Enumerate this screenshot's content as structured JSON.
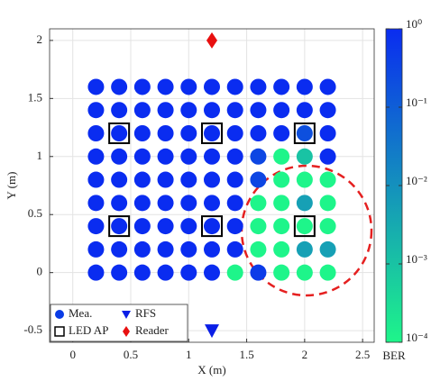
{
  "chart_data": {
    "type": "scatter",
    "xlabel": "X (m)",
    "ylabel": "Y (m)",
    "xlim": [
      -0.2,
      2.6
    ],
    "xticks": [
      0,
      0.5,
      1,
      1.5,
      2,
      2.5
    ],
    "ylim": [
      -0.6,
      2.1
    ],
    "yticks": [
      -0.5,
      0,
      0.5,
      1,
      1.5,
      2
    ],
    "grid": true,
    "legend": "lower left",
    "colorbar": {
      "label": "BER",
      "scale": "log",
      "clim": [
        0.0001,
        1
      ],
      "colormap": [
        "#1ef58a",
        "#0a2cf0"
      ],
      "ticks": [
        {
          "value": 1,
          "label": "10⁰"
        },
        {
          "value": 0.1,
          "label": "10⁻¹"
        },
        {
          "value": 0.01,
          "label": "10⁻²"
        },
        {
          "value": 0.001,
          "label": "10⁻³"
        },
        {
          "value": 0.0001,
          "label": "10⁻⁴"
        }
      ]
    },
    "series": [
      {
        "name": "Mea.",
        "marker": "circle",
        "color": "#0a3ce6",
        "x": [
          0.2,
          0.4,
          0.6,
          0.8,
          1,
          1.2,
          1.4,
          1.6,
          1.8,
          2,
          2.2,
          0.2,
          0.4,
          0.6,
          0.8,
          1,
          1.2,
          1.4,
          1.6,
          1.8,
          2,
          2.2,
          0.2,
          0.4,
          0.6,
          0.8,
          1,
          1.2,
          1.4,
          1.6,
          1.8,
          2,
          2.2,
          0.2,
          0.4,
          0.6,
          0.8,
          1,
          1.2,
          1.4,
          1.6,
          1.8,
          2,
          2.2,
          0.2,
          0.4,
          0.6,
          0.8,
          1,
          1.2,
          1.4,
          1.6,
          1.8,
          2,
          2.2,
          0.2,
          0.4,
          0.6,
          0.8,
          1,
          1.2,
          1.4,
          1.6,
          1.8,
          2,
          2.2,
          0.2,
          0.4,
          0.6,
          0.8,
          1,
          1.2,
          1.4,
          1.6,
          1.8,
          2,
          2.2,
          0.2,
          0.4,
          0.6,
          0.8,
          1,
          1.2,
          1.4,
          1.6,
          1.8,
          2,
          2.2,
          0.2,
          0.4,
          0.6,
          0.8,
          1,
          1.2,
          1.4,
          1.6,
          1.8,
          2,
          2.2
        ],
        "y": [
          0,
          0,
          0,
          0,
          0,
          0,
          0,
          0,
          0,
          0,
          0,
          0.2,
          0.2,
          0.2,
          0.2,
          0.2,
          0.2,
          0.2,
          0.2,
          0.2,
          0.2,
          0.2,
          0.4,
          0.4,
          0.4,
          0.4,
          0.4,
          0.4,
          0.4,
          0.4,
          0.4,
          0.4,
          0.4,
          0.6,
          0.6,
          0.6,
          0.6,
          0.6,
          0.6,
          0.6,
          0.6,
          0.6,
          0.6,
          0.6,
          0.8,
          0.8,
          0.8,
          0.8,
          0.8,
          0.8,
          0.8,
          0.8,
          0.8,
          0.8,
          0.8,
          1,
          1,
          1,
          1,
          1,
          1,
          1,
          1,
          1,
          1,
          1,
          1.2,
          1.2,
          1.2,
          1.2,
          1.2,
          1.2,
          1.2,
          1.2,
          1.2,
          1.2,
          1.2,
          1.4,
          1.4,
          1.4,
          1.4,
          1.4,
          1.4,
          1.4,
          1.4,
          1.4,
          1.4,
          1.4,
          1.6,
          1.6,
          1.6,
          1.6,
          1.6,
          1.6,
          1.6,
          1.6,
          1.6,
          1.6,
          1.6
        ],
        "ber": [
          1,
          1,
          1,
          1,
          1,
          1,
          0.0001,
          0.5,
          0.0001,
          0.0001,
          0.0001,
          1,
          1,
          1,
          1,
          1,
          1,
          1,
          0.0001,
          0.0001,
          0.005,
          0.005,
          1,
          1,
          1,
          1,
          1,
          1,
          1,
          0.0001,
          0.0001,
          0.0001,
          0.0001,
          1,
          1,
          1,
          1,
          1,
          1,
          1,
          0.0001,
          0.0001,
          0.005,
          0.0001,
          1,
          1,
          1,
          1,
          1,
          1,
          1,
          0.3,
          0.0001,
          0.0001,
          0.0001,
          1,
          1,
          1,
          1,
          1,
          1,
          1,
          0.3,
          0.0001,
          0.001,
          1,
          1,
          1,
          1,
          1,
          1,
          1,
          1,
          1,
          1,
          0.2,
          1,
          1,
          1,
          1,
          1,
          1,
          1,
          1,
          1,
          1,
          1,
          1,
          1,
          1,
          1,
          1,
          1,
          1,
          1,
          1,
          1,
          1,
          1
        ]
      },
      {
        "name": "LED AP",
        "marker": "square",
        "color": "#000000",
        "x": [
          0.4,
          1.2,
          2,
          0.4,
          1.2,
          2
        ],
        "y": [
          1.2,
          1.2,
          1.2,
          0.4,
          0.4,
          0.4
        ]
      },
      {
        "name": "RFS",
        "marker": "triangle",
        "color": "#0a1ee6",
        "x": [
          1.2
        ],
        "y": [
          -0.5
        ]
      },
      {
        "name": "Reader",
        "marker": "diamond",
        "color": "#e81010",
        "x": [
          1.2
        ],
        "y": [
          2
        ]
      }
    ]
  }
}
